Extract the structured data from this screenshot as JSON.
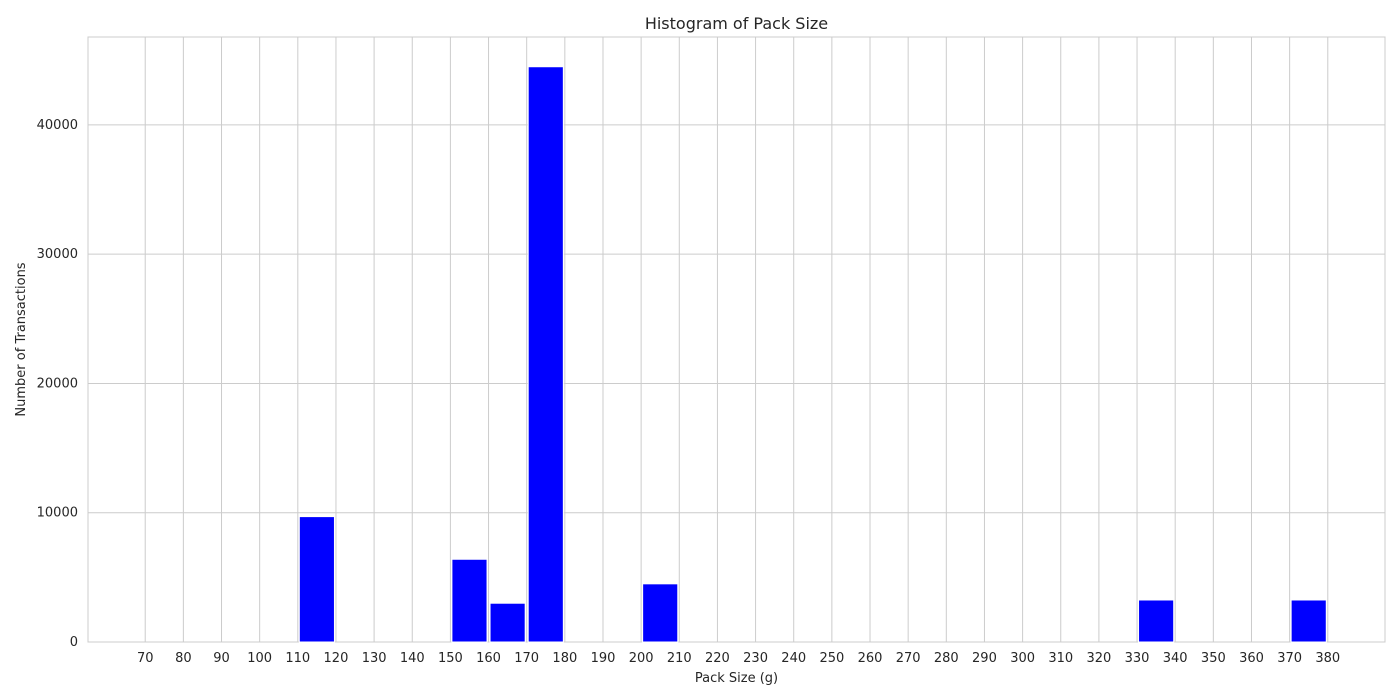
{
  "chart_data": {
    "type": "bar",
    "title": "Histogram of Pack Size",
    "xlabel": "Pack Size (g)",
    "ylabel": "Number of Transactions",
    "bin_width": 10,
    "xlim": [
      55,
      395
    ],
    "ylim": [
      0,
      46800
    ],
    "x_ticks": [
      70,
      80,
      90,
      100,
      110,
      120,
      130,
      140,
      150,
      160,
      170,
      180,
      190,
      200,
      210,
      220,
      230,
      240,
      250,
      260,
      270,
      280,
      290,
      300,
      310,
      320,
      330,
      340,
      350,
      360,
      370,
      380
    ],
    "y_ticks": [
      0,
      10000,
      20000,
      30000,
      40000
    ],
    "bins": [
      {
        "start": 110,
        "end": 120,
        "value": 9700
      },
      {
        "start": 150,
        "end": 160,
        "value": 6400
      },
      {
        "start": 160,
        "end": 170,
        "value": 3000
      },
      {
        "start": 170,
        "end": 180,
        "value": 44500
      },
      {
        "start": 200,
        "end": 210,
        "value": 4500
      },
      {
        "start": 330,
        "end": 340,
        "value": 3250
      },
      {
        "start": 370,
        "end": 380,
        "value": 3250
      }
    ],
    "bar_color": "#0000ff",
    "grid": true,
    "grid_color": "#cccccc"
  }
}
